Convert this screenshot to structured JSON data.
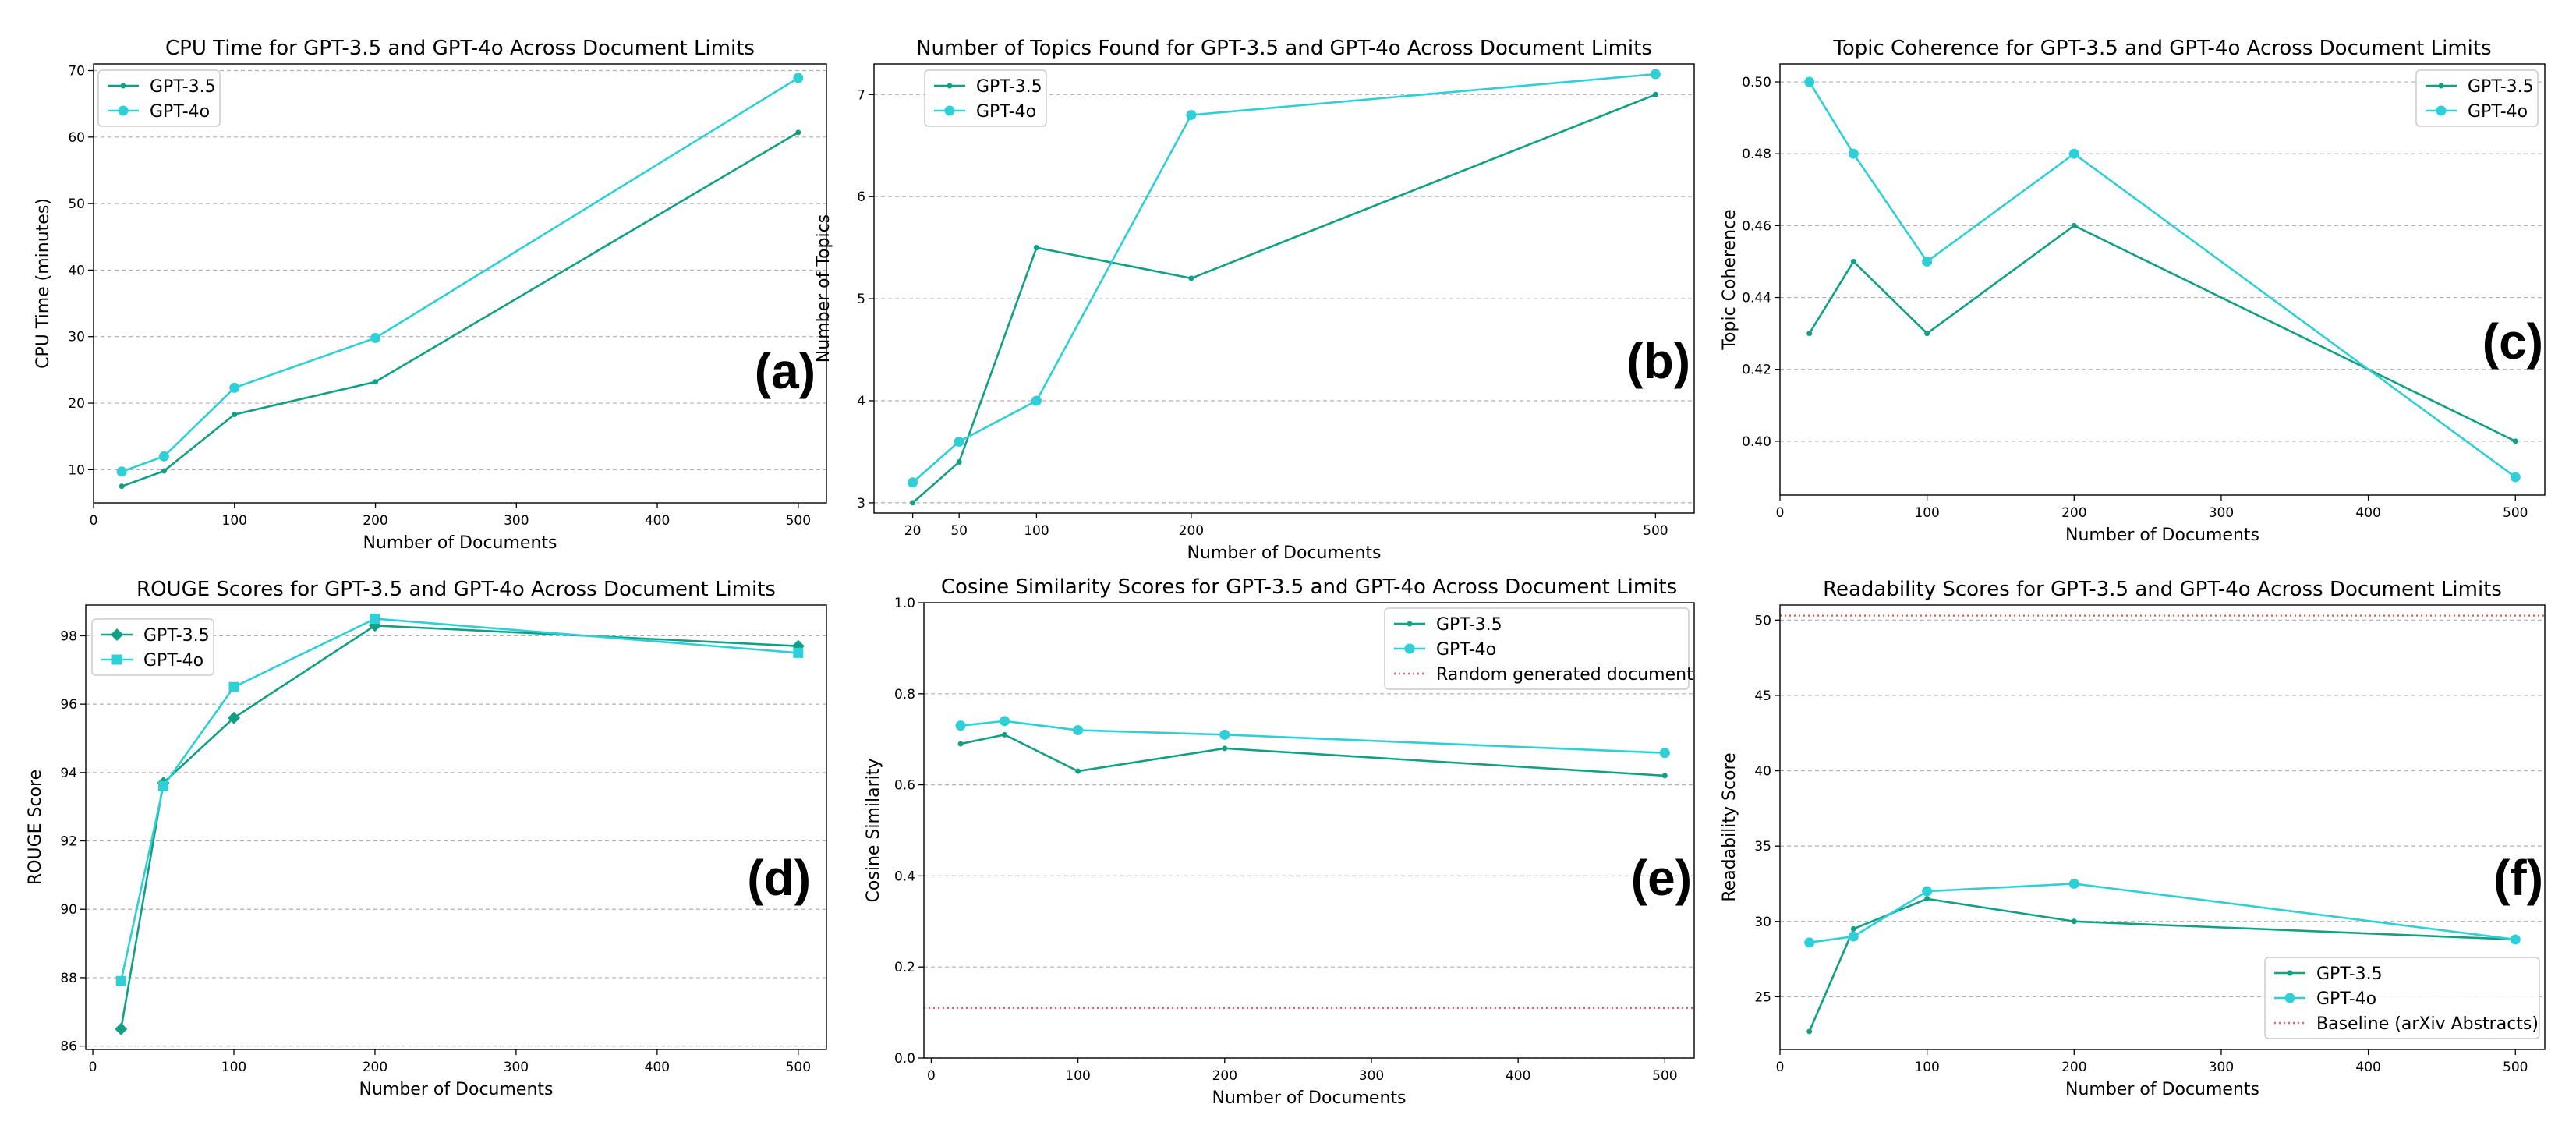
{
  "chart_data": [
    {
      "id": "a",
      "type": "line",
      "title": "CPU Time for GPT-3.5 and GPT-4o Across Document Limits",
      "xlabel": "Number of Documents",
      "ylabel": "CPU Time (minutes)",
      "panel_letter": "(a)",
      "xlim": [
        0,
        520
      ],
      "ylim": [
        5,
        71
      ],
      "xticks": [
        0,
        100,
        200,
        300,
        400,
        500
      ],
      "yticks": [
        10,
        20,
        30,
        40,
        50,
        60,
        70
      ],
      "grid": "horizontal",
      "legend_position": "upper-left",
      "series": [
        {
          "name": "GPT-3.5",
          "color": "#12a085",
          "marker": "point",
          "x": [
            20,
            50,
            100,
            200,
            500
          ],
          "y": [
            7.5,
            9.8,
            18.3,
            23.2,
            60.7
          ]
        },
        {
          "name": "GPT-4o",
          "color": "#2ecfd6",
          "marker": "circle",
          "x": [
            20,
            50,
            100,
            200,
            500
          ],
          "y": [
            9.7,
            12.0,
            22.3,
            29.8,
            68.9
          ]
        }
      ],
      "hlines": []
    },
    {
      "id": "b",
      "type": "line",
      "title": "Number of Topics Found for GPT-3.5 and GPT-4o Across Document Limits",
      "xlabel": "Number of Documents",
      "ylabel": "Number of Topics",
      "panel_letter": "(b)",
      "xlim": [
        -5,
        525
      ],
      "ylim": [
        2.9,
        7.3
      ],
      "xticks": [
        20,
        50,
        100,
        200,
        500
      ],
      "yticks": [
        3,
        4,
        5,
        6,
        7
      ],
      "grid": "horizontal",
      "legend_position": "upper-left",
      "series": [
        {
          "name": "GPT-3.5",
          "color": "#12a085",
          "marker": "point",
          "x": [
            20,
            50,
            100,
            200,
            500
          ],
          "y": [
            3.0,
            3.4,
            5.5,
            5.2,
            7.0
          ]
        },
        {
          "name": "GPT-4o",
          "color": "#2ecfd6",
          "marker": "circle",
          "x": [
            20,
            50,
            100,
            200,
            500
          ],
          "y": [
            3.2,
            3.6,
            4.0,
            6.8,
            7.2
          ]
        }
      ],
      "hlines": []
    },
    {
      "id": "c",
      "type": "line",
      "title": "Topic Coherence for GPT-3.5 and GPT-4o Across Document Limits",
      "xlabel": "Number of Documents",
      "ylabel": "Topic Coherence",
      "panel_letter": "(c)",
      "xlim": [
        0,
        520
      ],
      "ylim": [
        0.385,
        0.505
      ],
      "xticks": [
        0,
        100,
        200,
        300,
        400,
        500
      ],
      "yticks": [
        0.4,
        0.42,
        0.44,
        0.46,
        0.48,
        0.5
      ],
      "ytick_decimals": 2,
      "grid": "horizontal",
      "legend_position": "upper-right",
      "series": [
        {
          "name": "GPT-3.5",
          "color": "#12a085",
          "marker": "point",
          "x": [
            20,
            50,
            100,
            200,
            500
          ],
          "y": [
            0.43,
            0.45,
            0.43,
            0.46,
            0.4
          ]
        },
        {
          "name": "GPT-4o",
          "color": "#2ecfd6",
          "marker": "circle",
          "x": [
            20,
            50,
            100,
            200,
            500
          ],
          "y": [
            0.5,
            0.48,
            0.45,
            0.48,
            0.39
          ]
        }
      ],
      "hlines": []
    },
    {
      "id": "d",
      "type": "line",
      "title": "ROUGE Scores for GPT-3.5 and GPT-4o Across Document Limits",
      "xlabel": "Number of Documents",
      "ylabel": "ROUGE Score",
      "panel_letter": "(d)",
      "xlim": [
        -5,
        520
      ],
      "ylim": [
        85.9,
        98.9
      ],
      "xticks": [
        0,
        100,
        200,
        300,
        400,
        500
      ],
      "yticks": [
        86,
        88,
        90,
        92,
        94,
        96,
        98
      ],
      "grid": "horizontal",
      "legend_position": "upper-left",
      "series": [
        {
          "name": "GPT-3.5",
          "color": "#12a085",
          "marker": "diamond",
          "x": [
            20,
            50,
            100,
            200,
            500
          ],
          "y": [
            86.5,
            93.7,
            95.6,
            98.3,
            97.7
          ]
        },
        {
          "name": "GPT-4o",
          "color": "#2ecfd6",
          "marker": "square",
          "x": [
            20,
            50,
            100,
            200,
            500
          ],
          "y": [
            87.9,
            93.6,
            96.5,
            98.5,
            97.5
          ]
        }
      ],
      "hlines": []
    },
    {
      "id": "e",
      "type": "line",
      "title": "Cosine Similarity Scores for GPT-3.5 and GPT-4o Across Document Limits",
      "xlabel": "Number of Documents",
      "ylabel": "Cosine Similarity",
      "panel_letter": "(e)",
      "xlim": [
        -5,
        520
      ],
      "ylim": [
        0.0,
        1.0
      ],
      "xticks": [
        0,
        100,
        200,
        300,
        400,
        500
      ],
      "yticks": [
        0.0,
        0.2,
        0.4,
        0.6,
        0.8,
        1.0
      ],
      "ytick_decimals": 1,
      "grid": "horizontal",
      "legend_position": "upper-right",
      "series": [
        {
          "name": "GPT-3.5",
          "color": "#12a085",
          "marker": "point",
          "x": [
            20,
            50,
            100,
            200,
            500
          ],
          "y": [
            0.69,
            0.71,
            0.63,
            0.68,
            0.62
          ]
        },
        {
          "name": "GPT-4o",
          "color": "#2ecfd6",
          "marker": "circle",
          "x": [
            20,
            50,
            100,
            200,
            500
          ],
          "y": [
            0.73,
            0.74,
            0.72,
            0.71,
            0.67
          ]
        }
      ],
      "hlines": [
        {
          "name": "Random generated document",
          "y": 0.11,
          "color": "#f05a5a",
          "style": "dotted"
        }
      ]
    },
    {
      "id": "f",
      "type": "line",
      "title": "Readability Scores for GPT-3.5 and GPT-4o Across Document Limits",
      "xlabel": "Number of Documents",
      "ylabel": "Readability Score",
      "panel_letter": "(f)",
      "xlim": [
        0,
        520
      ],
      "ylim": [
        21.5,
        51.0
      ],
      "xticks": [
        0,
        100,
        200,
        300,
        400,
        500
      ],
      "yticks": [
        25,
        30,
        35,
        40,
        45,
        50
      ],
      "grid": "horizontal",
      "legend_position": "lower-right",
      "series": [
        {
          "name": "GPT-3.5",
          "color": "#12a085",
          "marker": "point",
          "x": [
            20,
            50,
            100,
            200,
            500
          ],
          "y": [
            22.7,
            29.5,
            31.5,
            30.0,
            28.8
          ]
        },
        {
          "name": "GPT-4o",
          "color": "#2ecfd6",
          "marker": "circle",
          "x": [
            20,
            50,
            100,
            200,
            500
          ],
          "y": [
            28.6,
            29.0,
            32.0,
            32.5,
            28.8
          ]
        }
      ],
      "hlines": [
        {
          "name": "Baseline (arXiv Abstracts)",
          "y": 50.3,
          "color": "#f05a5a",
          "style": "dotted"
        }
      ]
    }
  ]
}
